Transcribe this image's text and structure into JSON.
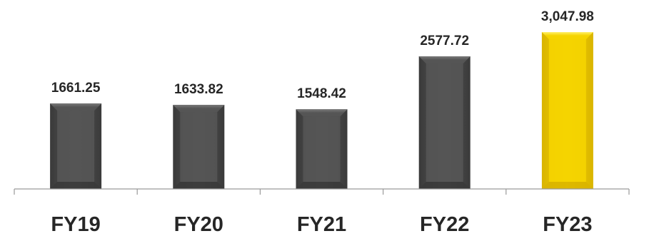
{
  "chart_data": {
    "type": "bar",
    "categories": [
      "FY19",
      "FY20",
      "FY21",
      "FY22",
      "FY23"
    ],
    "values": [
      1661.25,
      1633.82,
      1548.42,
      2577.72,
      3047.98
    ],
    "value_labels": [
      "1661.25",
      "1633.82",
      "1548.42",
      "2577.72",
      "3,047.98"
    ],
    "title": "",
    "xlabel": "",
    "ylabel": "",
    "ylim": [
      0,
      3200
    ],
    "grid": false,
    "legend": "none",
    "colors": {
      "default_bar": "#555555",
      "default_bar_light": "#7a7a7a",
      "default_bar_dark": "#3a3a3a",
      "highlight_bar": "#f5d400",
      "highlight_bar_light": "#fff06a",
      "highlight_bar_dark": "#d9b400",
      "axis": "#9a9a9a",
      "text": "#262626"
    },
    "highlight_index": 4
  }
}
